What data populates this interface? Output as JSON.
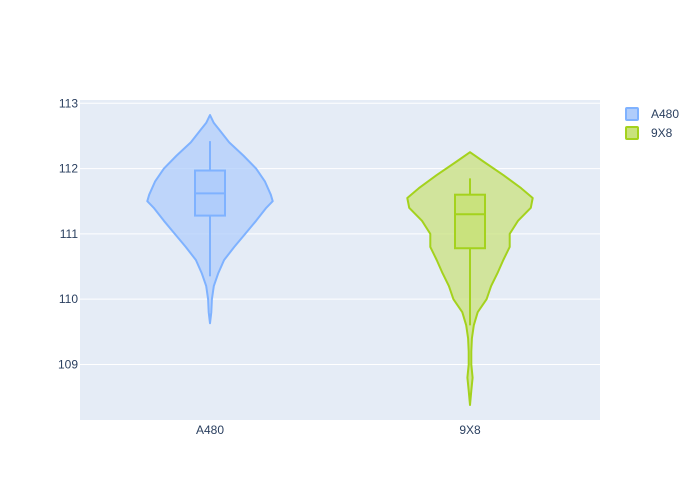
{
  "chart_data": {
    "type": "violin",
    "title": "",
    "xlabel": "",
    "ylabel": "",
    "categories": [
      "A480",
      "9X8"
    ],
    "ylim": [
      108.15,
      113.05
    ],
    "yticks": [
      109,
      110,
      111,
      112,
      113
    ],
    "grid": true,
    "legend": {
      "placement": "top-right"
    },
    "series": [
      {
        "name": "A480",
        "category": "A480",
        "color": "#7fb2ff",
        "fill": "#b0cdfb",
        "box": {
          "q1": 111.28,
          "median": 111.62,
          "q3": 111.97,
          "whisker_low": 110.35,
          "whisker_high": 112.42
        },
        "min": 109.63,
        "max": 112.82,
        "density": [
          [
            109.63,
            0.0
          ],
          [
            109.8,
            0.02
          ],
          [
            110.0,
            0.03
          ],
          [
            110.2,
            0.06
          ],
          [
            110.4,
            0.13
          ],
          [
            110.6,
            0.22
          ],
          [
            110.8,
            0.38
          ],
          [
            111.0,
            0.55
          ],
          [
            111.2,
            0.72
          ],
          [
            111.4,
            0.88
          ],
          [
            111.5,
            0.98
          ],
          [
            111.6,
            0.95
          ],
          [
            111.8,
            0.86
          ],
          [
            112.0,
            0.72
          ],
          [
            112.2,
            0.52
          ],
          [
            112.4,
            0.3
          ],
          [
            112.6,
            0.14
          ],
          [
            112.7,
            0.06
          ],
          [
            112.82,
            0.0
          ]
        ]
      },
      {
        "name": "9X8",
        "category": "9X8",
        "color": "#a4d21d",
        "fill": "#c9e27d",
        "box": {
          "q1": 110.78,
          "median": 111.3,
          "q3": 111.6,
          "whisker_low": 109.6,
          "whisker_high": 111.85
        },
        "min": 108.38,
        "max": 112.25,
        "density": [
          [
            108.38,
            0.0
          ],
          [
            108.6,
            0.02
          ],
          [
            108.8,
            0.04
          ],
          [
            109.0,
            0.02
          ],
          [
            109.2,
            0.02
          ],
          [
            109.4,
            0.03
          ],
          [
            109.6,
            0.06
          ],
          [
            109.8,
            0.12
          ],
          [
            110.0,
            0.26
          ],
          [
            110.2,
            0.33
          ],
          [
            110.4,
            0.43
          ],
          [
            110.6,
            0.52
          ],
          [
            110.8,
            0.62
          ],
          [
            111.0,
            0.62
          ],
          [
            111.2,
            0.75
          ],
          [
            111.4,
            0.95
          ],
          [
            111.55,
            0.98
          ],
          [
            111.7,
            0.8
          ],
          [
            111.9,
            0.52
          ],
          [
            112.1,
            0.22
          ],
          [
            112.25,
            0.0
          ]
        ]
      }
    ]
  }
}
